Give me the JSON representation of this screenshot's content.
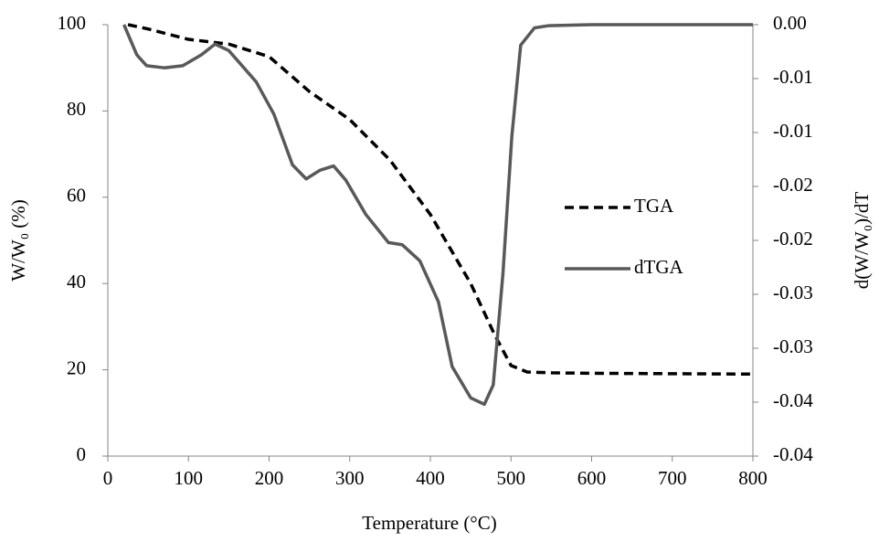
{
  "chart_data": {
    "type": "line",
    "xlabel": "Temperature (°C)",
    "ylabel": "W/W₀ (%)",
    "y2label": "d(W/W₀)/dT",
    "xlim": [
      0,
      800
    ],
    "xticks": [
      0,
      100,
      200,
      300,
      400,
      500,
      600,
      700,
      800
    ],
    "ylim": [
      0,
      100
    ],
    "yticks": [
      0,
      20,
      40,
      60,
      80,
      100
    ],
    "y2lim": [
      -0.04,
      0
    ],
    "y2ticks": [
      {
        "value": 0,
        "label": "0.00"
      },
      {
        "value": -0.005,
        "label": "-0.01"
      },
      {
        "value": -0.01,
        "label": "-0.01"
      },
      {
        "value": -0.015,
        "label": "-0.02"
      },
      {
        "value": -0.02,
        "label": "-0.02"
      },
      {
        "value": -0.025,
        "label": "-0.03"
      },
      {
        "value": -0.03,
        "label": "-0.03"
      },
      {
        "value": -0.035,
        "label": "-0.04"
      },
      {
        "value": -0.04,
        "label": "-0.04"
      }
    ],
    "grid": false,
    "legend": "right",
    "series": [
      {
        "name": "TGA",
        "color": "#000000",
        "dashed": true,
        "x": [
          25,
          50,
          100,
          150,
          200,
          250,
          300,
          350,
          400,
          450,
          480,
          500,
          520,
          550,
          600,
          700,
          800
        ],
        "values": [
          100,
          99,
          96.6,
          95.5,
          92.6,
          84.5,
          78,
          68.6,
          56,
          40,
          28,
          21,
          19.5,
          19.3,
          19.2,
          19.1,
          19
        ]
      },
      {
        "name": "dTGA",
        "color": "#595959",
        "dashed": false,
        "axis": "y2",
        "x": [
          20,
          36,
          48,
          70,
          93,
          116,
          133,
          150,
          184,
          206,
          229,
          246,
          263,
          280,
          295,
          320,
          348,
          365,
          387,
          410,
          427,
          450,
          467,
          478,
          490,
          501,
          512,
          529,
          546,
          600,
          700,
          800
        ],
        "values": [
          0,
          -0.0028,
          -0.0038,
          -0.004,
          -0.0038,
          -0.0028,
          -0.0018,
          -0.0024,
          -0.0053,
          -0.0083,
          -0.013,
          -0.0143,
          -0.0135,
          -0.0131,
          -0.0144,
          -0.0176,
          -0.0202,
          -0.0204,
          -0.0219,
          -0.0257,
          -0.0317,
          -0.0346,
          -0.0352,
          -0.0334,
          -0.0231,
          -0.0104,
          -0.0019,
          -0.0003,
          -0.0001,
          0,
          0,
          0
        ]
      }
    ]
  }
}
